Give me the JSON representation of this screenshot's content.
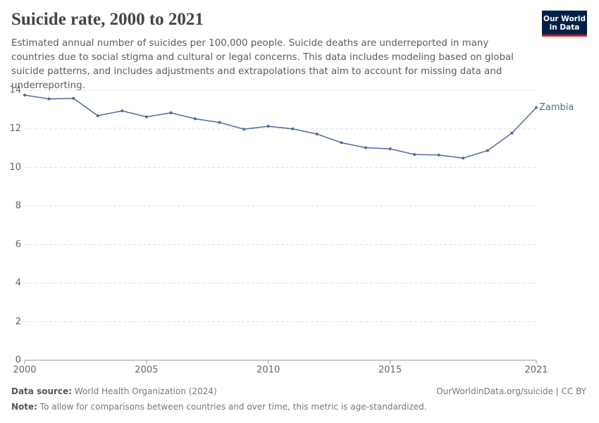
{
  "chart_data": {
    "type": "line",
    "title": "Suicide rate, 2000 to 2021",
    "subtitle": "Estimated annual number of suicides per 100,000 people. Suicide deaths are underreported in many countries due to social stigma and cultural or legal concerns. This data includes modeling based on global suicide patterns, and includes adjustments and extrapolations that aim to account for missing data and underreporting.",
    "x": [
      2000,
      2001,
      2002,
      2003,
      2004,
      2005,
      2006,
      2007,
      2008,
      2009,
      2010,
      2011,
      2012,
      2013,
      2014,
      2015,
      2016,
      2017,
      2018,
      2019,
      2020,
      2021
    ],
    "series": [
      {
        "name": "Zambia",
        "color": "#4c6a9c",
        "values": [
          13.75,
          13.55,
          13.58,
          12.68,
          12.93,
          12.62,
          12.83,
          12.52,
          12.33,
          11.98,
          12.13,
          12.0,
          11.73,
          11.28,
          11.02,
          10.96,
          10.67,
          10.64,
          10.48,
          10.87,
          11.78,
          13.1
        ]
      }
    ],
    "xlim": [
      2000,
      2021
    ],
    "xticks": [
      2000,
      2005,
      2010,
      2015,
      2021
    ],
    "ylim": [
      0,
      14
    ],
    "yticks": [
      0,
      2,
      4,
      6,
      8,
      10,
      12,
      14
    ],
    "grid": true
  },
  "logo": [
    "Our World",
    "in Data"
  ],
  "footer": {
    "source_label": "Data source:",
    "source": "World Health Organization (2024)",
    "url": "OurWorldinData.org/suicide | CC BY",
    "note_label": "Note:",
    "note": "To allow for comparisons between countries and over time, this metric is age-standardized."
  }
}
